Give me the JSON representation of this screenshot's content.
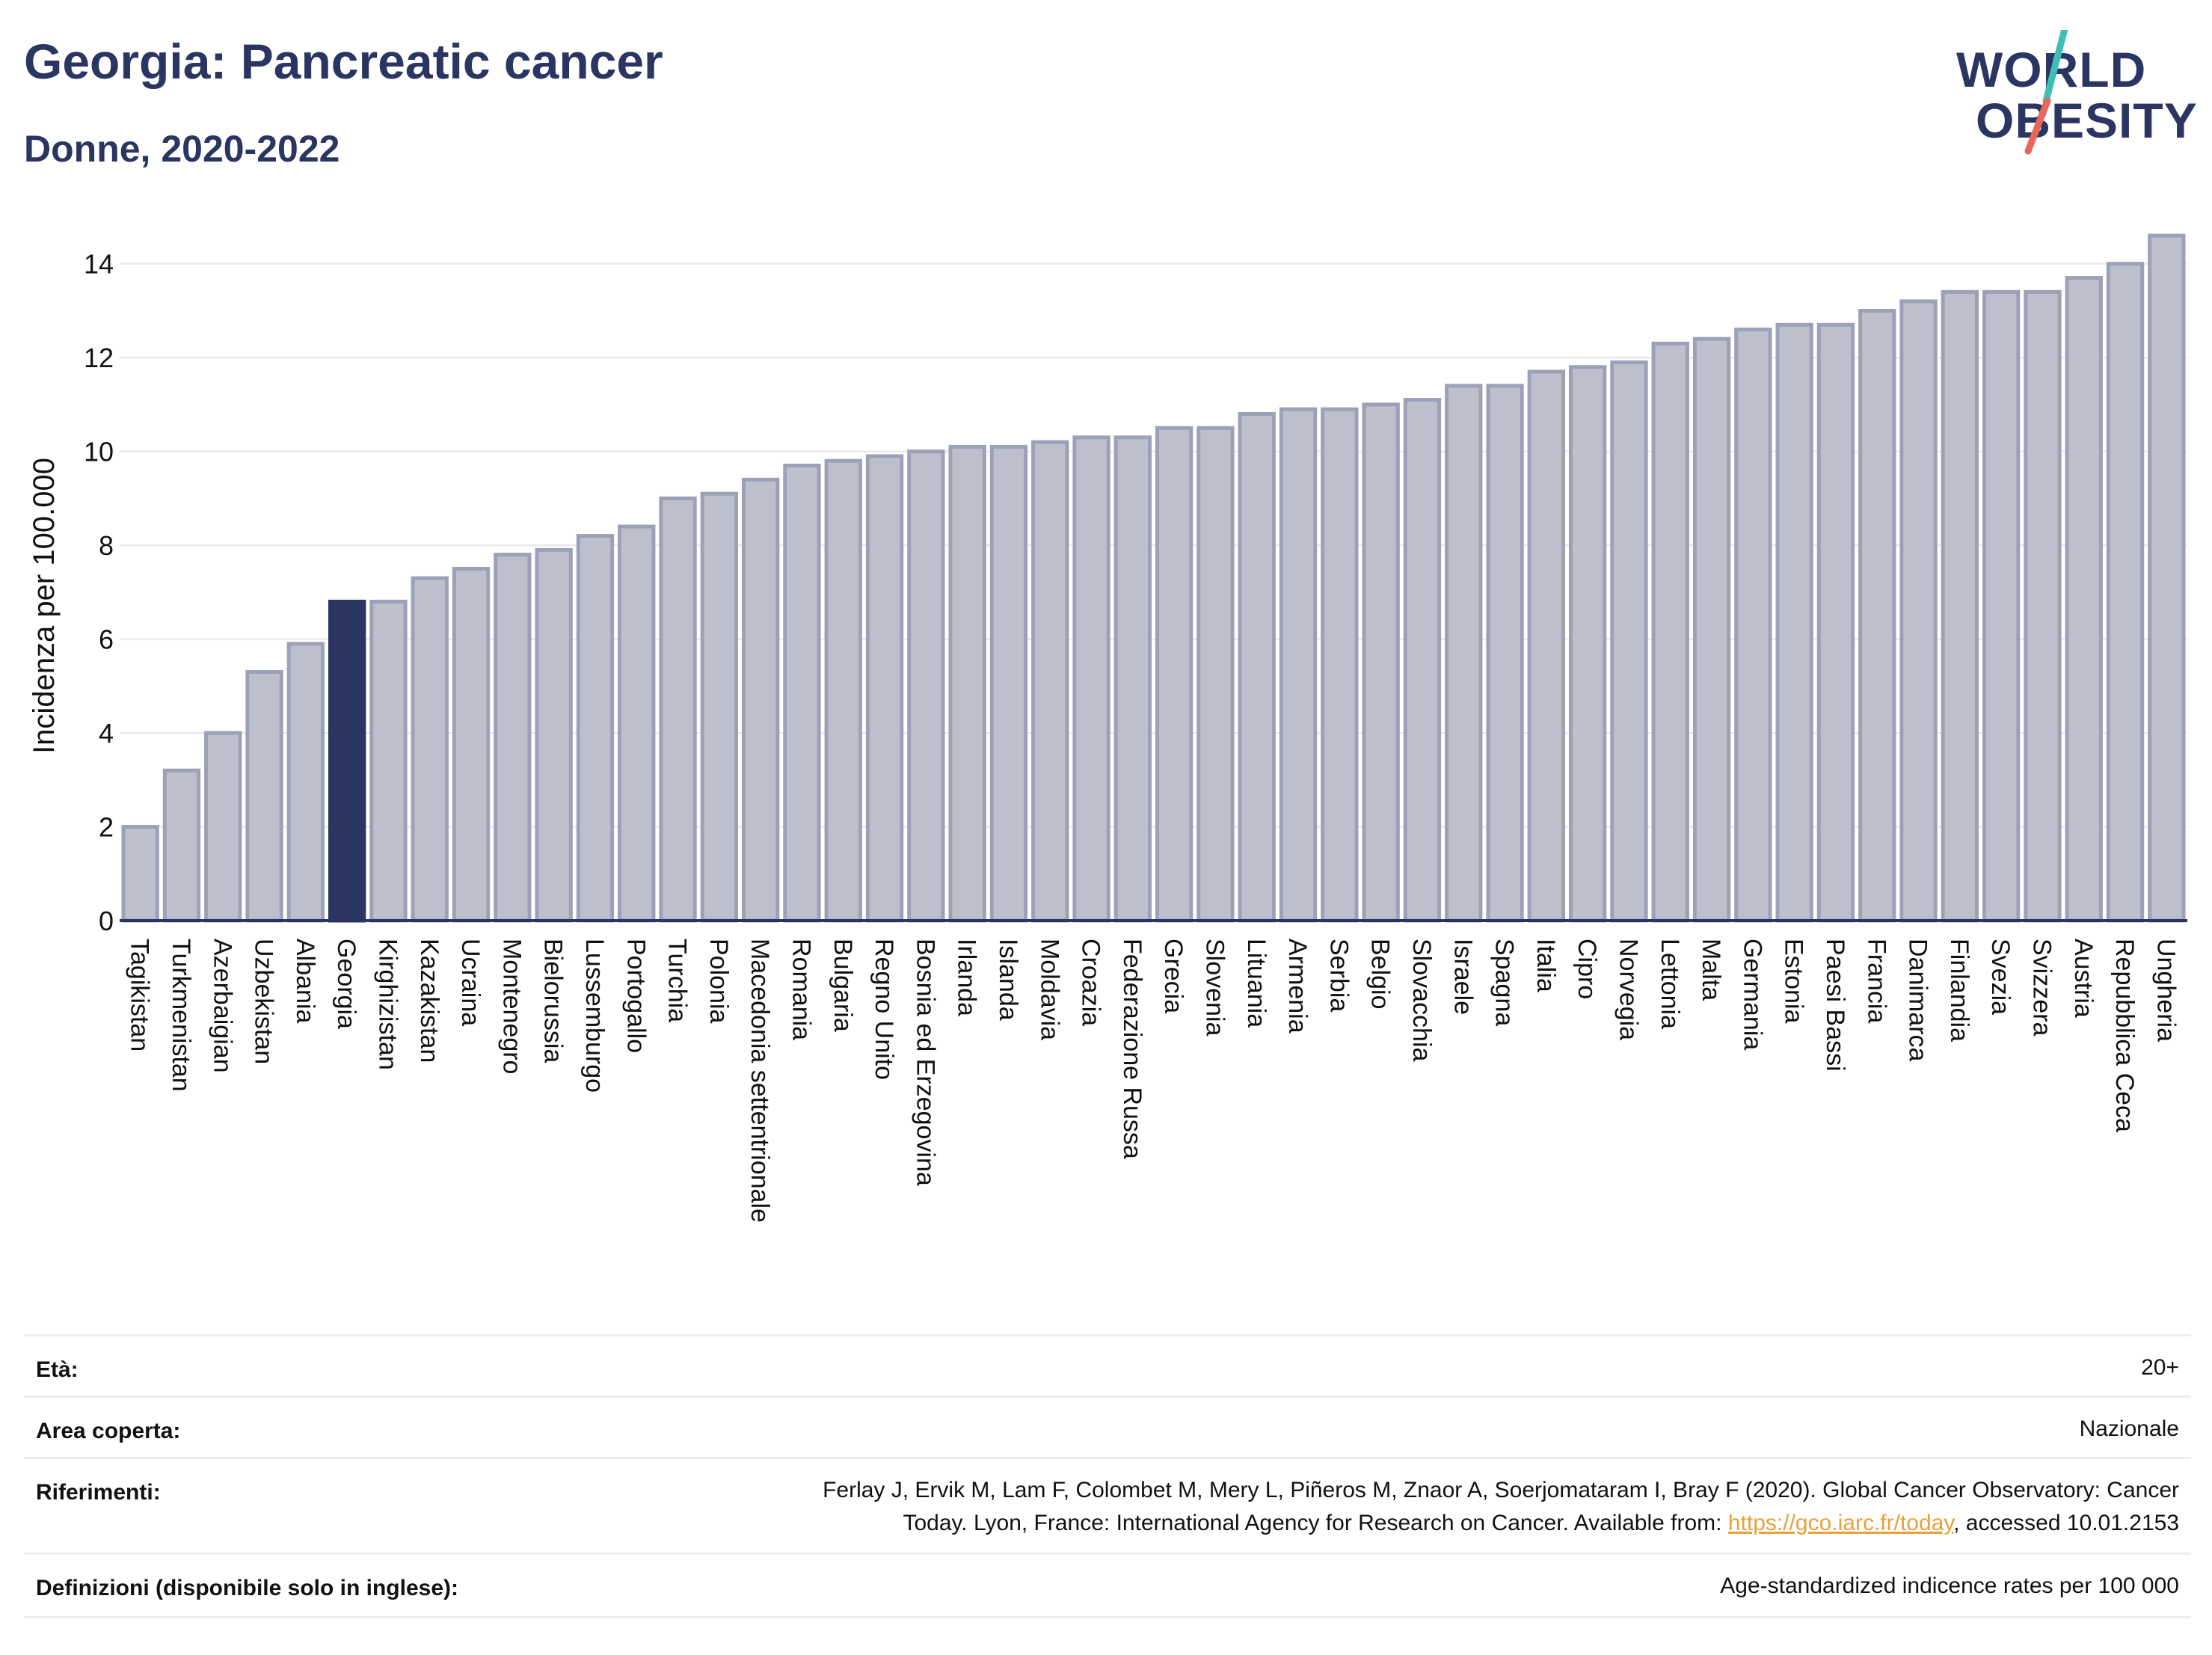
{
  "header": {
    "title": "Georgia: Pancreatic cancer",
    "subtitle": "Donne, 2020-2022"
  },
  "logo": {
    "line1": "WORLD",
    "line2": "OBESITY",
    "colors": {
      "text": "#2b3561",
      "slash_top": "#3dbfb8",
      "slash_bottom": "#e8665a"
    }
  },
  "chart_data": {
    "type": "bar",
    "ylabel": "Incidenza per 100.000",
    "xlabel": "",
    "ylim": [
      0,
      15
    ],
    "yticks": [
      0,
      2,
      4,
      6,
      8,
      10,
      12,
      14
    ],
    "grid": true,
    "highlight": "Georgia",
    "colors": {
      "bar": "#bcc0cd",
      "bar_edge": "#9ca1b8",
      "highlight": "#2b3561",
      "grid": "#e4e6ec"
    },
    "categories": [
      "Tagikistan",
      "Turkmenistan",
      "Azerbaigian",
      "Uzbekistan",
      "Albania",
      "Georgia",
      "Kirghizistan",
      "Kazakistan",
      "Ucraina",
      "Montenegro",
      "Bielorussia",
      "Lussemburgo",
      "Portogallo",
      "Turchia",
      "Polonia",
      "Macedonia settentrionale",
      "Romania",
      "Bulgaria",
      "Regno Unito",
      "Bosnia ed Erzegovina",
      "Irlanda",
      "Islanda",
      "Moldavia",
      "Croazia",
      "Federazione Russa",
      "Grecia",
      "Slovenia",
      "Lituania",
      "Armenia",
      "Serbia",
      "Belgio",
      "Slovacchia",
      "Israele",
      "Spagna",
      "Italia",
      "Cipro",
      "Norvegia",
      "Lettonia",
      "Malta",
      "Germania",
      "Estonia",
      "Paesi Bassi",
      "Francia",
      "Danimarca",
      "Finlandia",
      "Svezia",
      "Svizzera",
      "Austria",
      "Repubblica Ceca",
      "Ungheria"
    ],
    "values": [
      2.0,
      3.2,
      4.0,
      5.3,
      5.9,
      6.8,
      6.8,
      7.3,
      7.5,
      7.8,
      7.9,
      8.2,
      8.4,
      9.0,
      9.1,
      9.4,
      9.7,
      9.8,
      9.9,
      10.0,
      10.1,
      10.1,
      10.2,
      10.3,
      10.3,
      10.5,
      10.5,
      10.8,
      10.9,
      10.9,
      11.0,
      11.1,
      11.4,
      11.4,
      11.7,
      11.8,
      11.9,
      12.3,
      12.4,
      12.6,
      12.7,
      12.7,
      13.0,
      13.2,
      13.4,
      13.4,
      13.4,
      13.7,
      14.0,
      14.6
    ]
  },
  "info": {
    "age_label": "Età:",
    "age_value": "20+",
    "coverage_label": "Area coperta:",
    "coverage_value": "Nazionale",
    "references_label": "Riferimenti:",
    "references_line1": "Ferlay J, Ervik M, Lam F, Colombet M, Mery L, Piñeros M, Znaor A, Soerjomataram I, Bray F (2020). Global Cancer Observatory: Cancer",
    "references_line2_pre": "Today. Lyon, France: International Agency for Research on Cancer. Available from: ",
    "references_link": "https://gco.iarc.fr/today",
    "references_line2_post": ", accessed 10.01.2153",
    "definitions_label": "Definizioni (disponibile solo in inglese):",
    "definitions_value": "Age-standardized indicence rates per 100 000"
  }
}
